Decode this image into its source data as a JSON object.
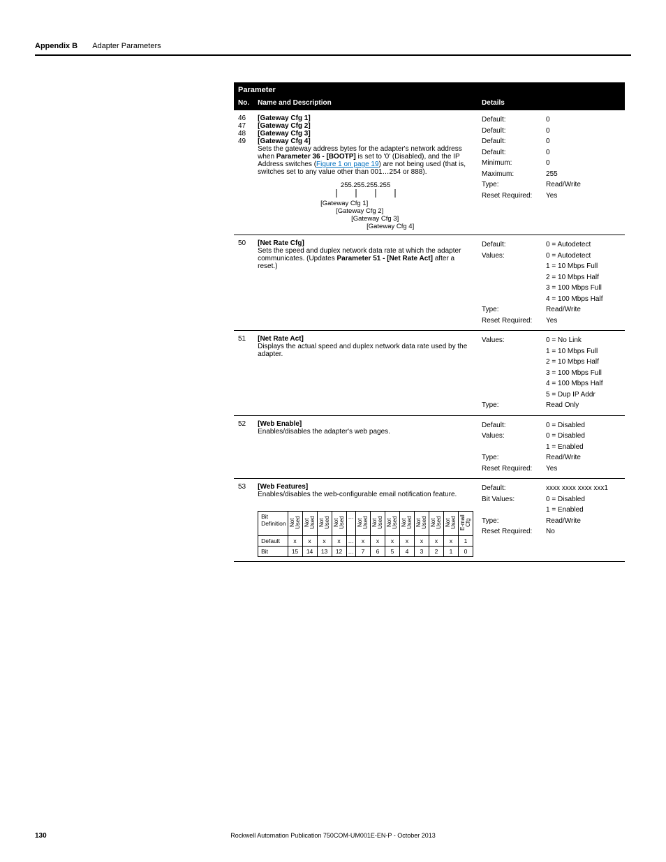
{
  "running_head": {
    "bold": "Appendix B",
    "light": "Adapter Parameters"
  },
  "header": {
    "parameter": "Parameter",
    "no": "No.",
    "name": "Name and Description",
    "details": "Details"
  },
  "rows": [
    {
      "nos": [
        "46",
        "47",
        "48",
        "49"
      ],
      "names": [
        "[Gateway Cfg 1]",
        "[Gateway Cfg 2]",
        "[Gateway Cfg 3]",
        "[Gateway Cfg 4]"
      ],
      "desc_pre": "Sets the gateway address bytes for the adapter's network address when ",
      "desc_bold1": "Parameter 36 - [BOOTP]",
      "desc_mid1": " is set to '0' (Disabled), and the IP Address switches (",
      "link": "Figure 1 on page 19",
      "desc_mid2": ") are not being used (that is, switches set to any value other than 001…254 or 888).",
      "tree": {
        "root": "255.255.255.255",
        "leaves": [
          "[Gateway Cfg 1]",
          "[Gateway Cfg 2]",
          "[Gateway Cfg 3]",
          "[Gateway Cfg 4]"
        ]
      },
      "keys": [
        "Default:",
        "Default:",
        "Default:",
        "Default:",
        "Minimum:",
        "Maximum:",
        "Type:",
        "Reset Required:"
      ],
      "vals": [
        "0",
        "0",
        "0",
        "0",
        "0",
        "255",
        "Read/Write",
        "Yes"
      ]
    },
    {
      "nos": [
        "50"
      ],
      "names": [
        "[Net Rate Cfg]"
      ],
      "desc_pre": "Sets the speed and duplex network data rate at which the adapter communicates. (Updates ",
      "desc_bold1": "Parameter 51 - [Net Rate Act]",
      "desc_mid1": " after a reset.)",
      "keys": [
        "Default:",
        "Values:",
        "",
        "",
        "",
        "",
        "Type:",
        "Reset Required:"
      ],
      "vals": [
        "0 = Autodetect",
        "0 = Autodetect",
        "1 = 10 Mbps Full",
        "2 = 10 Mbps Half",
        "3 = 100 Mbps Full",
        "4 = 100 Mbps Half",
        "Read/Write",
        "Yes"
      ]
    },
    {
      "nos": [
        "51"
      ],
      "names": [
        "[Net Rate Act]"
      ],
      "desc_pre": "Displays the actual speed and duplex network data rate used by the adapter.",
      "keys": [
        "Values:",
        "",
        "",
        "",
        "",
        "",
        "Type:"
      ],
      "vals": [
        "0 = No Link",
        "1 = 10 Mbps Full",
        "2 = 10 Mbps Half",
        "3 = 100 Mbps Full",
        "4 = 100 Mbps Half",
        "5 = Dup IP Addr",
        "Read Only"
      ]
    },
    {
      "nos": [
        "52"
      ],
      "names": [
        "[Web Enable]"
      ],
      "desc_pre": "Enables/disables the adapter's web pages.",
      "keys": [
        "Default:",
        "Values:",
        "",
        "Type:",
        "Reset Required:"
      ],
      "vals": [
        "0 = Disabled",
        "0 = Disabled",
        "1 = Enabled",
        "Read/Write",
        "Yes"
      ]
    },
    {
      "nos": [
        "53"
      ],
      "names": [
        "[Web Features]"
      ],
      "desc_pre": "Enables/disables the web-configurable email notification feature.",
      "keys": [
        "Default:",
        "Bit Values:",
        "",
        "Type:",
        "Reset Required:"
      ],
      "vals": [
        "xxxx xxxx xxxx xxx1",
        "0 = Disabled",
        "1 = Enabled",
        "Read/Write",
        "No"
      ],
      "bits": {
        "labels": {
          "def": "Bit\nDefinition",
          "default": "Default",
          "bit": "Bit"
        },
        "cols_left": {
          "nums": [
            "15",
            "14",
            "13",
            "12"
          ],
          "defs": [
            "Not Used",
            "Not Used",
            "Not Used",
            "Not Used"
          ],
          "vals": [
            "x",
            "x",
            "x",
            "x"
          ]
        },
        "cols_right": {
          "nums": [
            "7",
            "6",
            "5",
            "4",
            "3",
            "2",
            "1",
            "0"
          ],
          "defs": [
            "Not Used",
            "Not Used",
            "Not Used",
            "Not Used",
            "Not Used",
            "Not Used",
            "Not Used",
            "E-mail Cfg"
          ],
          "vals": [
            "x",
            "x",
            "x",
            "x",
            "x",
            "x",
            "x",
            "1"
          ]
        },
        "ellipsis": "…"
      }
    }
  ],
  "footer": {
    "page": "130",
    "pub": "Rockwell Automation Publication 750COM-UM001E-EN-P - October 2013"
  }
}
